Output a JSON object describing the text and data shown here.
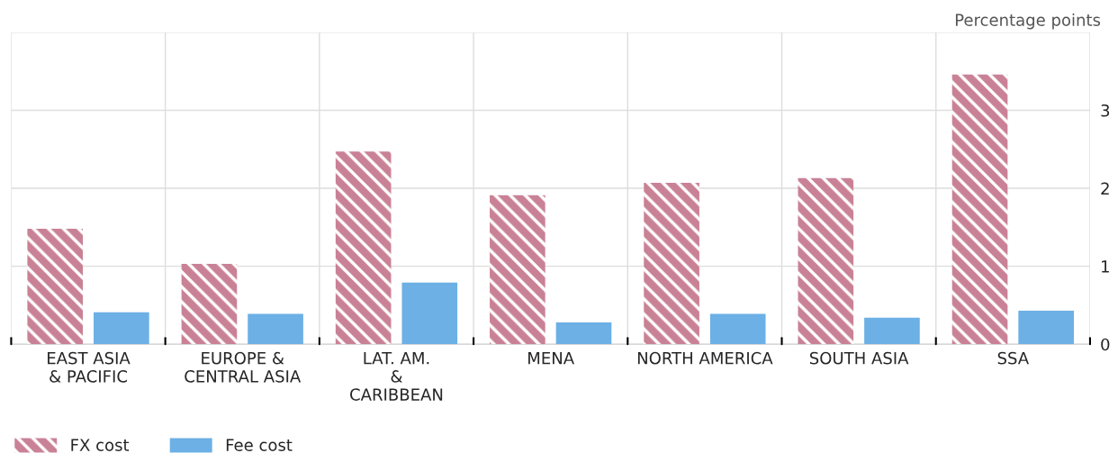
{
  "chart_data": {
    "type": "bar",
    "ylabel": "Percentage points",
    "categories": [
      "EAST ASIA\n& PACIFIC",
      "EUROPE &\nCENTRAL ASIA",
      "LAT. AM.\n&\nCARIBBEAN",
      "MENA",
      "NORTH AMERICA",
      "SOUTH ASIA",
      "SSA"
    ],
    "series": [
      {
        "name": "FX cost",
        "color": "#c98196",
        "values": [
          1.48,
          1.03,
          2.47,
          1.91,
          2.07,
          2.13,
          3.46
        ]
      },
      {
        "name": "Fee cost",
        "color": "#6cb0e5",
        "values": [
          0.41,
          0.39,
          0.79,
          0.28,
          0.39,
          0.34,
          0.43
        ]
      }
    ],
    "ylim": [
      0,
      4
    ],
    "yticks": [
      0,
      1,
      2,
      3,
      {
        "value": 4,
        "label": null
      }
    ],
    "grid": true,
    "legend": "bottom left"
  }
}
